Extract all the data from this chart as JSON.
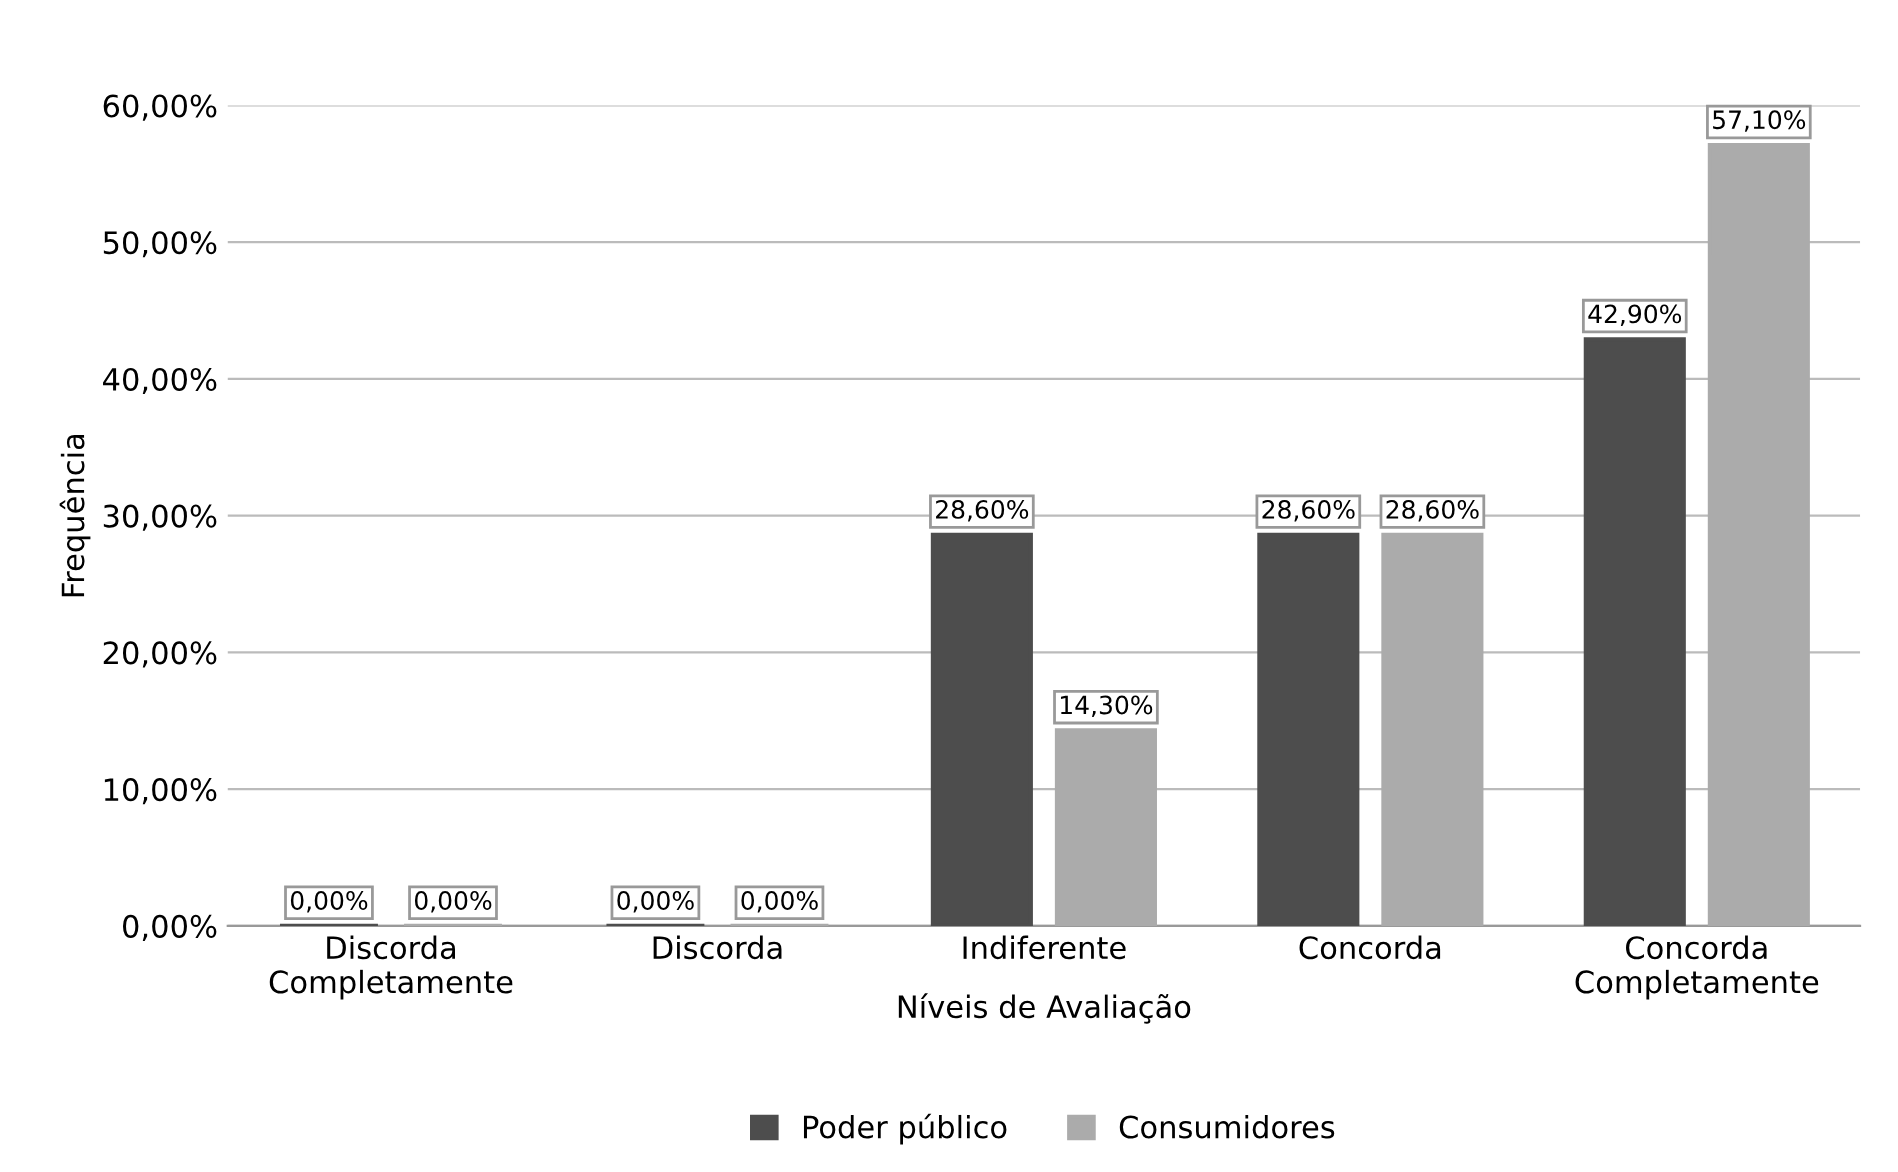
{
  "chart_data": {
    "type": "bar",
    "xlabel": "Níveis de Avaliação",
    "ylabel": "Frequência",
    "categories": [
      "Discorda\nCompletamente",
      "Discorda",
      "Indiferente",
      "Concorda",
      "Concorda\nCompletamente"
    ],
    "series": [
      {
        "name": "Poder público",
        "color": "#4d4d4d",
        "values": [
          0,
          0,
          28.6,
          28.6,
          42.9
        ],
        "value_labels": [
          "0,00%",
          "0,00%",
          "28,60%",
          "28,60%",
          "42,90%"
        ]
      },
      {
        "name": "Consumidores",
        "color": "#ababab",
        "values": [
          0,
          0,
          14.3,
          28.6,
          57.1
        ],
        "value_labels": [
          "0,00%",
          "0,00%",
          "14,30%",
          "28,60%",
          "57,10%"
        ]
      }
    ],
    "ylim": [
      0,
      60
    ],
    "yticks": [
      {
        "value": 0,
        "label": "0,00%"
      },
      {
        "value": 10,
        "label": "10,00%"
      },
      {
        "value": 20,
        "label": "20,00%"
      },
      {
        "value": 30,
        "label": "30,00%"
      },
      {
        "value": 40,
        "label": "40,00%"
      },
      {
        "value": 50,
        "label": "50,00%"
      },
      {
        "value": 60,
        "label": "60,00%"
      }
    ],
    "grid": "y",
    "legend": "bottom"
  }
}
